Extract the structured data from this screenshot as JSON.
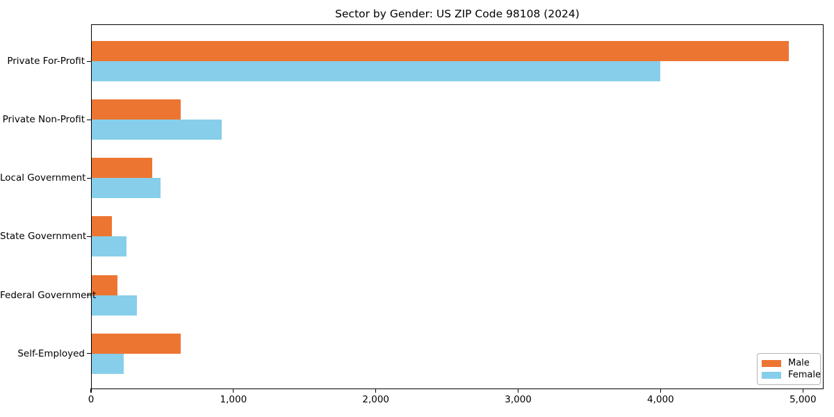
{
  "chart_data": {
    "type": "bar",
    "orientation": "horizontal",
    "title": "Sector by Gender: US ZIP Code 98108 (2024)",
    "categories": [
      "Private For-Profit",
      "Private Non-Profit",
      "Local Government",
      "State Government",
      "Federal Government",
      "Self-Employed"
    ],
    "series": [
      {
        "name": "Male",
        "color": "#ED7532",
        "values": [
          4900,
          630,
          430,
          145,
          185,
          630
        ]
      },
      {
        "name": "Female",
        "color": "#87CEEB",
        "values": [
          4000,
          920,
          490,
          250,
          320,
          230
        ]
      }
    ],
    "xlabel": "",
    "ylabel": "",
    "xlim": [
      0,
      5145
    ],
    "x_ticks": [
      {
        "label": "0",
        "value": 0
      },
      {
        "label": "1,000",
        "value": 1000
      },
      {
        "label": "2,000",
        "value": 2000
      },
      {
        "label": "3,000",
        "value": 3000
      },
      {
        "label": "4,000",
        "value": 4000
      },
      {
        "label": "5,000",
        "value": 5000
      }
    ],
    "grid": false,
    "legend_position": "lower right"
  }
}
